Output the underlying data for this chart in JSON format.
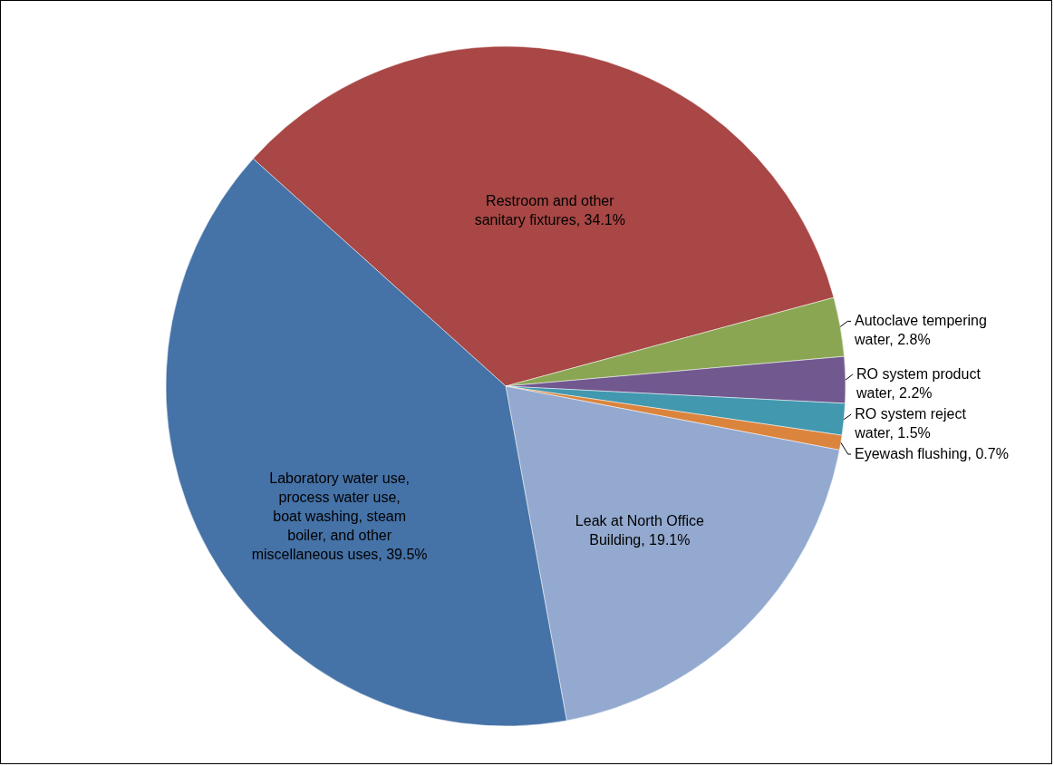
{
  "chart_data": {
    "type": "pie",
    "categories": [
      "Restroom and other sanitary fixtures",
      "Autoclave tempering water",
      "RO system product water",
      "RO system reject water",
      "Eyewash flushing",
      "Leak at North Office Building",
      "Laboratory water use, process water use, boat washing, steam boiler, and other miscellaneous uses"
    ],
    "values": [
      34.1,
      2.8,
      2.2,
      1.5,
      0.7,
      19.1,
      39.5
    ],
    "value_labels": [
      "34.1%",
      "2.8%",
      "2.2%",
      "1.5%",
      "0.7%",
      "19.1%",
      "39.5%"
    ],
    "colors": [
      "#a84745",
      "#8aa653",
      "#71588f",
      "#4198af",
      "#db843d",
      "#93a9cf",
      "#4572a7"
    ]
  }
}
